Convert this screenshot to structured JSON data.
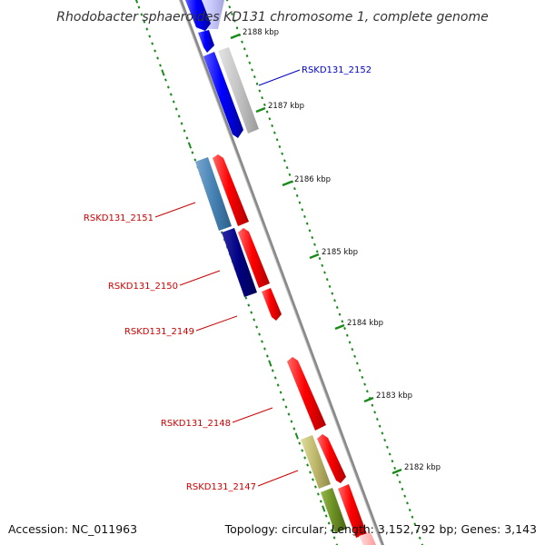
{
  "title": "Rhodobacter sphaeroides KD131 chromosome 1, complete genome",
  "footer": {
    "accession": "Accession: NC_011963",
    "summary": "Topology: circular; Length: 3,152,792 bp; Genes: 3,143"
  },
  "ticks": [
    {
      "label": "2188 kbp"
    },
    {
      "label": "2187 kbp"
    },
    {
      "label": "2186 kbp"
    },
    {
      "label": "2185 kbp"
    },
    {
      "label": "2184 kbp"
    },
    {
      "label": "2183 kbp"
    },
    {
      "label": "2182 kbp"
    }
  ],
  "gene_labels": [
    {
      "text": "RSKD131_2152",
      "color": "#0000cc"
    },
    {
      "text": "RSKD131_2151",
      "color": "#cc0000"
    },
    {
      "text": "RSKD131_2150",
      "color": "#cc0000"
    },
    {
      "text": "RSKD131_2149",
      "color": "#cc0000"
    },
    {
      "text": "RSKD131_2148",
      "color": "#cc0000"
    },
    {
      "text": "RSKD131_2147",
      "color": "#cc0000"
    }
  ],
  "colors": {
    "backbone": "#8a8a8a",
    "tick": "#1a8a1a",
    "forward_gene": "#ff0000",
    "reverse_gene": "#0000ff",
    "other_gene": "#bdbdbd",
    "steelblue_gene": "#4682b4",
    "navy_gene": "#000080",
    "khaki_gene": "#bdb76b",
    "olive_gene": "#6b8e23",
    "lavender_gene": "#ccccff"
  }
}
